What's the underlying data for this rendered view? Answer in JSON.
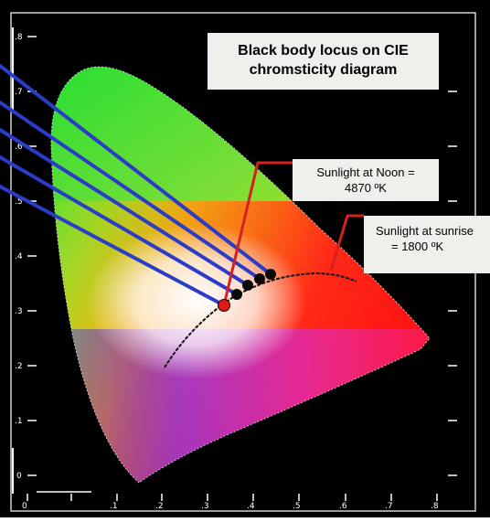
{
  "diagram": {
    "title": "Black body locus on CIE chromsticity diagram",
    "title_line1": "Black body locus on CIE",
    "title_line2": "chromsticity diagram",
    "callouts": {
      "noon": {
        "line1": "Sunlight at Noon =",
        "line2": "4870 ºK"
      },
      "sunrise": {
        "line1": "Sunlight at sunrise",
        "line2": "= 1800 ºK"
      }
    },
    "colors": {
      "background": "#000000",
      "frame": "#ffffff",
      "callout_bg": "#eef0ec",
      "projection_lines": "#2b3cc8",
      "leader_lines": "#d42020",
      "locus": "#111111",
      "sunlight_point": "#e01818"
    },
    "axis_ticks": {
      "x": [
        "0",
        ".1",
        ".2",
        ".3",
        ".4",
        ".5",
        ".6",
        ".7",
        ".8"
      ],
      "y": [
        "0",
        ".1",
        ".2",
        ".3",
        ".4",
        ".5",
        ".6",
        ".7",
        ".8"
      ]
    }
  }
}
